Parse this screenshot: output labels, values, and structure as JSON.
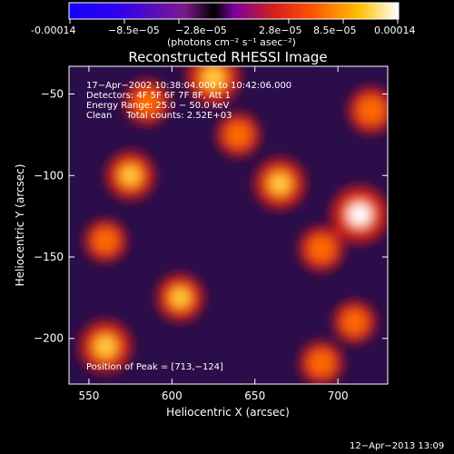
{
  "chart_data": {
    "type": "heatmap",
    "title": "Reconstructed RHESSI Image",
    "xlabel": "Heliocentric X (arcsec)",
    "ylabel": "Heliocentric Y (arcsec)",
    "xlim": [
      538,
      730
    ],
    "ylim": [
      -228,
      -33
    ],
    "x_ticks": [
      550,
      600,
      650,
      700
    ],
    "y_ticks": [
      -50,
      -100,
      -150,
      -200
    ],
    "colorbar": {
      "colormap": "hot-with-blue-negative",
      "range": [
        -0.00014,
        0.00014
      ],
      "tick_labels": [
        "-0.00014",
        "−8.5e−05",
        "−2.8e−05",
        "2.8e−05",
        "8.5e−05",
        "0.00014"
      ],
      "unit_text": "(photons cm⁻² s⁻¹ asec⁻²)",
      "colors": [
        "#1400ff",
        "#3300ee",
        "#7d1a8c",
        "#000000",
        "#7a00a0",
        "#d21e1e",
        "#ff5500",
        "#ffc000",
        "#ffffff"
      ]
    },
    "annotations": [
      "17−Apr−2002 10:38:04.000 to 10:42:06.000",
      "Detectors: 4F 5F 6F 7F 8F, Att 1",
      "Energy Range: 25.0 − 50.0 keV",
      "Clean     Total counts: 2.52E+03"
    ],
    "peak_label": "Position of Peak = [713,−124]",
    "peak": [
      713,
      -124
    ],
    "sources": [
      {
        "x": 713,
        "y": -124,
        "value": 1.0
      },
      {
        "x": 625,
        "y": -40,
        "value": 0.85
      },
      {
        "x": 560,
        "y": -205,
        "value": 0.8
      },
      {
        "x": 665,
        "y": -105,
        "value": 0.75
      },
      {
        "x": 605,
        "y": -175,
        "value": 0.6
      },
      {
        "x": 575,
        "y": -100,
        "value": 0.65
      },
      {
        "x": 690,
        "y": -145,
        "value": 0.5
      },
      {
        "x": 720,
        "y": -60,
        "value": 0.55
      },
      {
        "x": 690,
        "y": -215,
        "value": 0.45
      },
      {
        "x": 560,
        "y": -140,
        "value": 0.4
      },
      {
        "x": 640,
        "y": -75,
        "value": 0.45
      },
      {
        "x": 710,
        "y": -190,
        "value": 0.4
      },
      {
        "x": 585,
        "y": -55,
        "value": 0.5
      }
    ]
  },
  "footer": {
    "timestamp": "12−Apr−2013 13:09"
  }
}
